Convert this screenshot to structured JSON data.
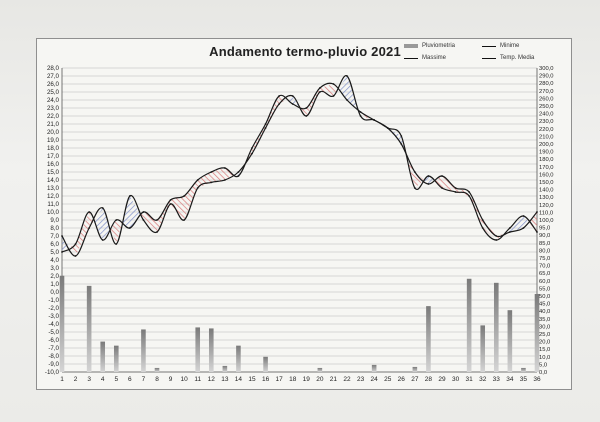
{
  "chart_data": {
    "type": "line",
    "title": "Andamento termo-pluvio 2021",
    "x": [
      1,
      2,
      3,
      4,
      5,
      6,
      7,
      8,
      9,
      10,
      11,
      12,
      13,
      14,
      15,
      16,
      17,
      18,
      19,
      20,
      21,
      22,
      23,
      24,
      25,
      26,
      27,
      28,
      29,
      30,
      31,
      32,
      33,
      34,
      35,
      36
    ],
    "x_ticks": [
      "1",
      "2",
      "3",
      "4",
      "5",
      "6",
      "7",
      "8",
      "9",
      "10",
      "11",
      "12",
      "13",
      "14",
      "15",
      "16",
      "17",
      "18",
      "19",
      "20",
      "21",
      "22",
      "23",
      "24",
      "25",
      "26",
      "27",
      "28",
      "29",
      "30",
      "31",
      "32",
      "33",
      "34",
      "35",
      "36"
    ],
    "ylim": [
      -10,
      28
    ],
    "y_ticks": [
      "-10,0",
      "-9,0",
      "-8,0",
      "-7,0",
      "-6,0",
      "-5,0",
      "-4,0",
      "-3,0",
      "-2,0",
      "-1,0",
      "0,0",
      "1,0",
      "2,0",
      "3,0",
      "4,0",
      "5,0",
      "6,0",
      "7,0",
      "8,0",
      "9,0",
      "10,0",
      "11,0",
      "12,0",
      "13,0",
      "14,0",
      "15,0",
      "16,0",
      "17,0",
      "18,0",
      "19,0",
      "20,0",
      "21,0",
      "22,0",
      "23,0",
      "24,0",
      "25,0",
      "26,0",
      "27,0",
      "28,0"
    ],
    "y2lim": [
      0,
      300
    ],
    "y2_ticks": [
      "0,0",
      "5,0",
      "10,0",
      "15,0",
      "20,0",
      "25,0",
      "30,0",
      "35,0",
      "40,0",
      "45,0",
      "50,0",
      "55,0",
      "60,0",
      "65,0",
      "70,0",
      "75,0",
      "80,0",
      "85,0",
      "90,0",
      "95,0",
      "100,0",
      "110,0",
      "120,0",
      "130,0",
      "140,0",
      "150,0",
      "160,0",
      "170,0",
      "180,0",
      "190,0",
      "200,0",
      "210,0",
      "220,0",
      "230,0",
      "240,0",
      "250,0",
      "260,0",
      "270,0",
      "280,0",
      "290,0",
      "300,0"
    ],
    "series": [
      {
        "name": "Pluviometria",
        "axis": "right",
        "values": [
          95,
          0,
          85,
          30,
          26,
          0,
          42,
          4,
          0,
          0,
          44,
          43,
          6,
          26,
          0,
          15,
          0,
          0,
          0,
          4,
          0,
          0,
          0,
          7,
          0,
          0,
          5,
          65,
          0,
          0,
          92,
          46,
          88,
          61,
          4,
          77
        ]
      },
      {
        "name": "Minime",
        "values": [
          7.0,
          4.5,
          8.0,
          10.5,
          6.0,
          12.0,
          9.0,
          7.5,
          11.0,
          9.0,
          13.0,
          13.7,
          14.0,
          15.0,
          17.3,
          20.5,
          23.5,
          24.5,
          22.0,
          25.0,
          24.5,
          27.0,
          22.0,
          21.5,
          20.5,
          19.5,
          13.0,
          14.5,
          13.0,
          12.5,
          12.0,
          8.0,
          6.5,
          8.0,
          9.5,
          7.5
        ]
      },
      {
        "name": "Massime",
        "values": [
          5.0,
          6.0,
          10.0,
          6.5,
          9.0,
          8.0,
          10.0,
          9.0,
          11.5,
          12.0,
          14.0,
          15.0,
          15.5,
          14.5,
          18.0,
          21.0,
          24.5,
          23.5,
          23.0,
          25.5,
          26.0,
          24.0,
          22.5,
          21.5,
          20.5,
          18.5,
          15.0,
          13.5,
          14.5,
          13.0,
          12.5,
          9.0,
          7.0,
          7.5,
          8.0,
          10.0
        ]
      }
    ]
  },
  "legend": {
    "pluvio": "Pluviometria",
    "min": "Minime",
    "max": "Massime",
    "media": "Temp. Media"
  },
  "colors": {
    "warm": "#d87878",
    "cool": "#7f8fc8",
    "bars": "#8a8a8a",
    "line": "#1a1a1a"
  }
}
